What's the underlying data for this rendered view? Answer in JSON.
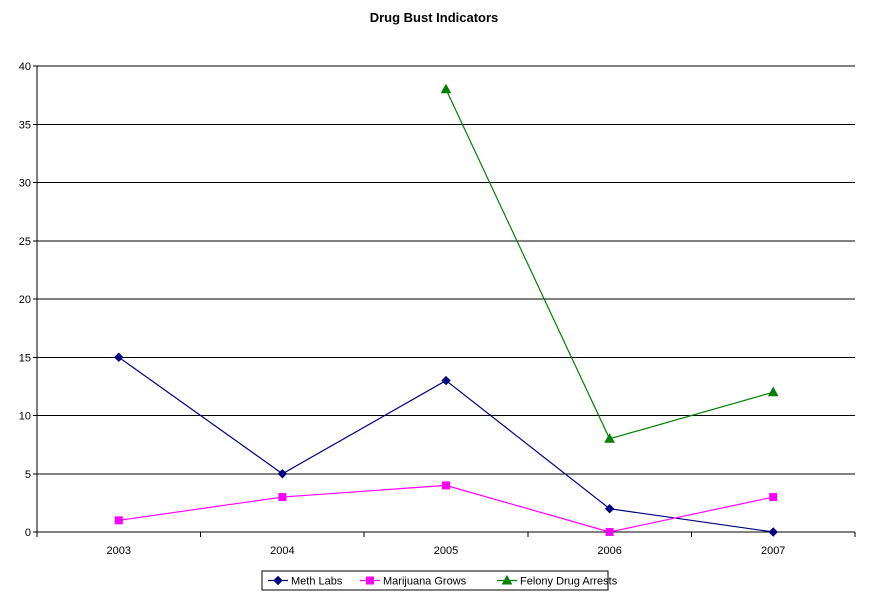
{
  "chart_data": {
    "type": "line",
    "title": "Drug Bust Indicators",
    "xlabel": "",
    "ylabel": "",
    "categories": [
      "2003",
      "2004",
      "2005",
      "2006",
      "2007"
    ],
    "ylim": [
      0,
      40
    ],
    "yticks": [
      0,
      5,
      10,
      15,
      20,
      25,
      30,
      35,
      40
    ],
    "grid": true,
    "legend_position": "bottom",
    "series": [
      {
        "name": "Meth Labs",
        "values": [
          15,
          5,
          13,
          2,
          0
        ],
        "color": "#000080",
        "marker": "diamond"
      },
      {
        "name": "Marijuana Grows",
        "values": [
          1,
          3,
          4,
          0,
          3
        ],
        "color": "#FF00FF",
        "marker": "square"
      },
      {
        "name": "Felony Drug Arrests",
        "values": [
          null,
          null,
          38,
          8,
          12
        ],
        "color": "#008000",
        "marker": "triangle"
      }
    ]
  }
}
